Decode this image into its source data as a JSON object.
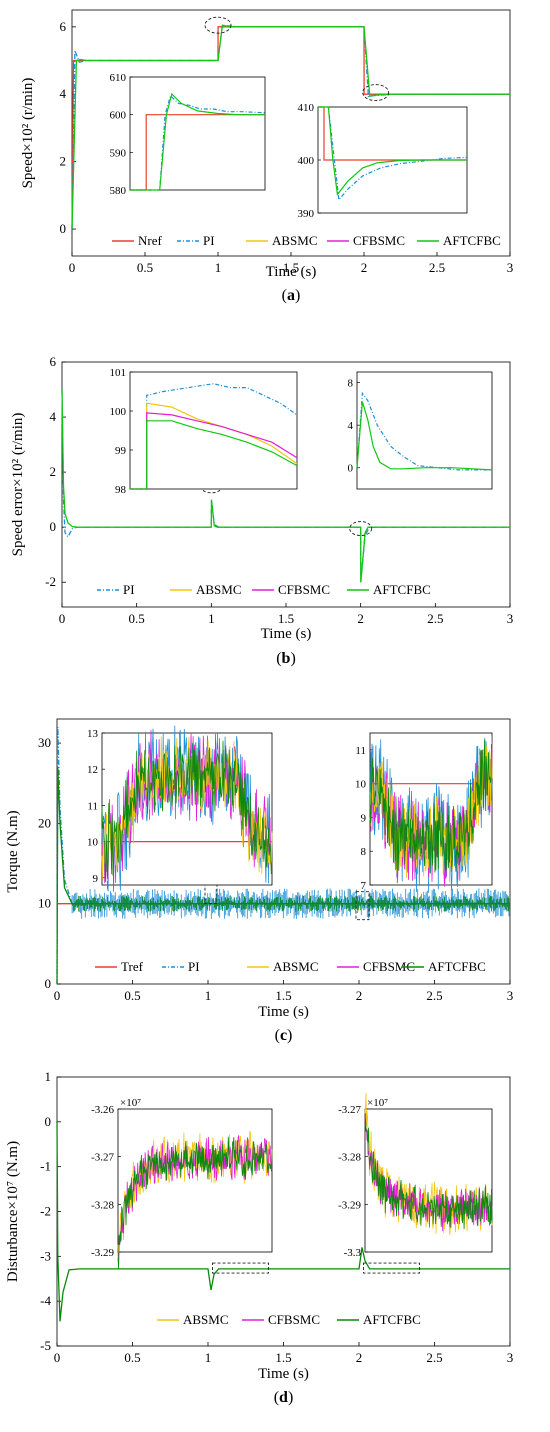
{
  "colors": {
    "Nref": "#e8412f",
    "Tref": "#e8412f",
    "PI": "#1f8fd6",
    "ABSMC": "#f2c60f",
    "CFBSMC": "#e020d8",
    "AFTCFBC": "#12c612",
    "AFTCFBC_dark": "#0a8a0a"
  },
  "chart_data": [
    {
      "type": "line",
      "caption": "(a)",
      "caption_letter": "a",
      "ylabel": "Speed×10² (r/min)",
      "xlabel": "Time (s)",
      "xlim": [
        0,
        3
      ],
      "ylim": [
        -0.8,
        6.5
      ],
      "xticks": [
        "0",
        "0.5",
        "1",
        "1.5",
        "2",
        "2.5",
        "3"
      ],
      "yticks": [
        "0",
        "2",
        "4",
        "6"
      ],
      "legend": [
        "Nref",
        "PI",
        "ABSMC",
        "CFBSMC",
        "AFTCFBC"
      ],
      "legend_position": "bottom",
      "series": [
        {
          "name": "Nref",
          "x": [
            0,
            0.01,
            1.0,
            1.001,
            2.0,
            2.001,
            3
          ],
          "y": [
            0,
            5,
            5,
            6,
            6,
            4,
            4
          ]
        },
        {
          "name": "PI",
          "x": [
            0,
            0.02,
            0.05,
            0.1,
            1.0,
            1.03,
            1.06,
            1.15,
            2.0,
            2.03,
            2.05,
            2.2,
            3
          ],
          "y": [
            0,
            5.3,
            4.95,
            5,
            5,
            6.05,
            6.03,
            6,
            6,
            3.93,
            3.95,
            4,
            4
          ]
        },
        {
          "name": "AFTCFBC",
          "x": [
            0,
            0.03,
            0.06,
            0.1,
            1.0,
            1.03,
            1.06,
            1.1,
            2.0,
            2.04,
            2.07,
            2.15,
            3
          ],
          "y": [
            0,
            5.0,
            5.03,
            5,
            5,
            6.05,
            6.02,
            6,
            6,
            3.94,
            3.97,
            4,
            4
          ]
        }
      ],
      "insets": [
        {
          "ylim": [
            580,
            610
          ],
          "yticks": [
            "580",
            "590",
            "600",
            "610"
          ],
          "series": [
            {
              "name": "Nref",
              "x": [
                0,
                0.12,
                0.12,
                1
              ],
              "y": [
                580,
                580,
                600,
                600
              ]
            },
            {
              "name": "PI",
              "x": [
                0,
                0.22,
                0.26,
                0.3,
                0.36,
                0.44,
                0.52,
                0.62,
                0.72,
                0.84,
                1
              ],
              "y": [
                580,
                580,
                600,
                605,
                603,
                602.5,
                601.5,
                601.5,
                600.8,
                600.8,
                600.5
              ]
            },
            {
              "name": "AFTCFBC",
              "x": [
                0,
                0.22,
                0.27,
                0.31,
                0.38,
                0.5,
                0.65,
                0.8,
                1
              ],
              "y": [
                580,
                580,
                600,
                605.5,
                603,
                601,
                600.3,
                600,
                600
              ]
            }
          ]
        },
        {
          "ylim": [
            390,
            410
          ],
          "yticks": [
            "390",
            "400",
            "410"
          ],
          "series": [
            {
              "name": "Nref",
              "x": [
                0,
                0.04,
                0.04,
                1
              ],
              "y": [
                410,
                410,
                400,
                400
              ]
            },
            {
              "name": "PI",
              "x": [
                0,
                0.07,
                0.11,
                0.14,
                0.2,
                0.3,
                0.42,
                0.55,
                0.7,
                0.85,
                1
              ],
              "y": [
                410,
                410,
                400,
                392.5,
                394.5,
                397,
                398.5,
                399.3,
                399.8,
                400.3,
                400.5
              ]
            },
            {
              "name": "AFTCFBC",
              "x": [
                0,
                0.07,
                0.1,
                0.13,
                0.2,
                0.3,
                0.4,
                0.55,
                0.7,
                1
              ],
              "y": [
                410,
                410,
                400,
                393.5,
                396,
                398.5,
                399.5,
                399.9,
                400,
                400
              ]
            }
          ]
        }
      ]
    },
    {
      "type": "line",
      "caption": "(b)",
      "caption_letter": "b",
      "ylabel": "Speed error×10² (r/min)",
      "xlabel": "Time (s)",
      "xlim": [
        0,
        3
      ],
      "ylim": [
        -2.9,
        6
      ],
      "xticks": [
        "0",
        "0.5",
        "1",
        "1.5",
        "2",
        "2.5",
        "3"
      ],
      "yticks": [
        "-2",
        "0",
        "2",
        "4",
        "6"
      ],
      "legend": [
        "PI",
        "ABSMC",
        "CFBSMC",
        "AFTCFBC"
      ],
      "legend_position": "bottom",
      "series": [
        {
          "name": "PI",
          "x": [
            0,
            0.01,
            0.02,
            0.04,
            0.07,
            0.1,
            1.0,
            1.001,
            1.02,
            1.05,
            2.0,
            2.001,
            2.03,
            2.06,
            3
          ],
          "y": [
            5,
            1,
            -0.2,
            -0.35,
            -0.05,
            0,
            0,
            1.0,
            0.1,
            0,
            0,
            -2.0,
            -0.3,
            0,
            0
          ]
        },
        {
          "name": "AFTCFBC",
          "x": [
            0,
            0.01,
            0.02,
            0.04,
            0.07,
            0.1,
            1.0,
            1.001,
            1.02,
            1.04,
            2.0,
            2.001,
            2.03,
            2.05,
            3
          ],
          "y": [
            5,
            1.5,
            0.5,
            0.15,
            0.02,
            0,
            0,
            0.98,
            0.05,
            0,
            0,
            -2.0,
            -0.2,
            0,
            0
          ]
        }
      ],
      "insets": [
        {
          "ylim": [
            98,
            101
          ],
          "yticks": [
            "98",
            "99",
            "100",
            "101"
          ],
          "series": [
            {
              "name": "PI",
              "x": [
                0,
                0.1,
                0.1,
                0.2,
                0.35,
                0.5,
                0.6,
                0.7,
                0.8,
                0.9,
                1
              ],
              "y": [
                98,
                98,
                100.4,
                100.5,
                100.6,
                100.7,
                100.6,
                100.6,
                100.4,
                100.2,
                99.9
              ]
            },
            {
              "name": "ABSMC",
              "x": [
                0,
                0.1,
                0.1,
                0.25,
                0.4,
                0.55,
                0.7,
                0.85,
                1
              ],
              "y": [
                98,
                98,
                100.2,
                100.1,
                99.8,
                99.6,
                99.4,
                99.1,
                98.65
              ]
            },
            {
              "name": "CFBSMC",
              "x": [
                0,
                0.1,
                0.1,
                0.25,
                0.4,
                0.55,
                0.7,
                0.85,
                1
              ],
              "y": [
                98,
                98,
                99.95,
                99.9,
                99.75,
                99.6,
                99.4,
                99.2,
                98.8
              ]
            },
            {
              "name": "AFTCFBC",
              "x": [
                0,
                0.1,
                0.1,
                0.25,
                0.4,
                0.55,
                0.7,
                0.85,
                1
              ],
              "y": [
                98,
                98,
                99.75,
                99.75,
                99.55,
                99.4,
                99.2,
                98.95,
                98.6
              ]
            }
          ]
        },
        {
          "ylim": [
            -2,
            9
          ],
          "yticks": [
            "0",
            "4",
            "8"
          ],
          "series": [
            {
              "name": "PI",
              "x": [
                0,
                0.04,
                0.08,
                0.15,
                0.25,
                0.35,
                0.45,
                0.6,
                0.75,
                1
              ],
              "y": [
                0,
                7.0,
                6.3,
                4,
                2,
                1,
                0.2,
                0,
                -0.2,
                -0.2
              ]
            },
            {
              "name": "AFTCFBC",
              "x": [
                0,
                0.04,
                0.08,
                0.12,
                0.17,
                0.25,
                0.35,
                0.5,
                0.7,
                1
              ],
              "y": [
                0,
                6.2,
                4.5,
                2,
                0.5,
                -0.1,
                -0.1,
                0,
                0,
                -0.2
              ]
            }
          ]
        }
      ]
    },
    {
      "type": "line",
      "caption": "(c)",
      "caption_letter": "c",
      "ylabel": "Torque (N.m)",
      "xlabel": "Time (s)",
      "xlim": [
        0,
        3
      ],
      "ylim": [
        0,
        33
      ],
      "xticks": [
        "0",
        "0.5",
        "1",
        "1.5",
        "2",
        "2.5",
        "3"
      ],
      "yticks": [
        "0",
        "10",
        "20",
        "30"
      ],
      "legend": [
        "Tref",
        "PI",
        "ABSMC",
        "CFBSMC",
        "AFTCFBC"
      ],
      "legend_position": "bottom",
      "series": [
        {
          "name": "Tref",
          "x": [
            0,
            3
          ],
          "y": [
            10,
            10
          ]
        },
        {
          "name": "PI",
          "x": [
            0,
            0.005,
            0.02,
            0.05,
            0.1,
            3
          ],
          "y": [
            0,
            32,
            22,
            13,
            10,
            10
          ]
        },
        {
          "name": "AFTCFBC",
          "x": [
            0,
            0.005,
            0.02,
            0.05,
            0.1,
            3
          ],
          "y": [
            0,
            27,
            20,
            12,
            10,
            10
          ]
        }
      ],
      "insets": [
        {
          "ylim": [
            8.8,
            13
          ],
          "yticks": [
            "9",
            "10",
            "11",
            "12",
            "13"
          ],
          "series": [
            {
              "name": "Tref",
              "x": [
                0,
                1
              ],
              "y": [
                10,
                10
              ]
            },
            {
              "name": "AFTCFBC",
              "x": [
                0,
                0.1,
                0.15,
                0.22,
                0.3,
                0.78,
                0.85,
                0.9,
                1
              ],
              "y": [
                10,
                10,
                10.8,
                11.6,
                11.8,
                11.8,
                10.8,
                10.2,
                10
              ]
            }
          ]
        },
        {
          "ylim": [
            7,
            11.5
          ],
          "yticks": [
            "7",
            "8",
            "9",
            "10",
            "11"
          ],
          "series": [
            {
              "name": "Tref",
              "x": [
                0,
                1
              ],
              "y": [
                10,
                10
              ]
            },
            {
              "name": "AFTCFBC",
              "x": [
                0,
                0.08,
                0.13,
                0.2,
                0.3,
                0.78,
                0.85,
                0.9,
                1
              ],
              "y": [
                10,
                10,
                9.3,
                8.6,
                8.3,
                8.3,
                9.2,
                10.2,
                10.4
              ]
            }
          ]
        }
      ]
    },
    {
      "type": "line",
      "caption": "(d)",
      "caption_letter": "d",
      "ylabel": "Disturbance×10⁷ (N.m)",
      "xlabel": "Time (s)",
      "xlim": [
        0,
        3
      ],
      "ylim": [
        -5,
        1
      ],
      "xticks": [
        "0",
        "0.5",
        "1",
        "1.5",
        "2",
        "2.5",
        "3"
      ],
      "yticks": [
        "-5",
        "-4",
        "-3",
        "-2",
        "-1",
        "0",
        "1"
      ],
      "legend": [
        "ABSMC",
        "CFBSMC",
        "AFTCFBC"
      ],
      "legend_position": "bottom",
      "series": [
        {
          "name": "AFTCFBC",
          "x": [
            0,
            0.005,
            0.02,
            0.04,
            0.08,
            0.15,
            1.0,
            1.02,
            1.04,
            1.07,
            2.0,
            2.02,
            2.04,
            2.07,
            3
          ],
          "y": [
            0,
            -3,
            -4.45,
            -3.8,
            -3.3,
            -3.28,
            -3.28,
            -3.75,
            -3.4,
            -3.28,
            -3.28,
            -2.8,
            -3.1,
            -3.28,
            -3.28
          ]
        }
      ],
      "insets": [
        {
          "ylim": [
            -3.29,
            -3.26
          ],
          "yticks": [
            "-3.26",
            "-3.27",
            "-3.28",
            "-3.29"
          ],
          "exponent": "×10⁷",
          "series": [
            {
              "name": "AFTCFBC",
              "x": [
                0,
                0.03,
                0.08,
                0.15,
                0.25,
                0.4,
                0.6,
                0.8,
                1
              ],
              "y": [
                -3.29,
                -3.283,
                -3.278,
                -3.273,
                -3.271,
                -3.2705,
                -3.2705,
                -3.27,
                -3.2705
              ]
            }
          ]
        },
        {
          "ylim": [
            -3.3,
            -3.27
          ],
          "yticks": [
            "-3.27",
            "-3.28",
            "-3.29",
            "-3.3"
          ],
          "exponent": "×10⁷",
          "series": [
            {
              "name": "AFTCFBC",
              "x": [
                0,
                0.03,
                0.08,
                0.15,
                0.25,
                0.4,
                0.6,
                0.8,
                1
              ],
              "y": [
                -3.27,
                -3.278,
                -3.284,
                -3.287,
                -3.289,
                -3.2905,
                -3.291,
                -3.2905,
                -3.291
              ]
            }
          ]
        }
      ]
    }
  ]
}
